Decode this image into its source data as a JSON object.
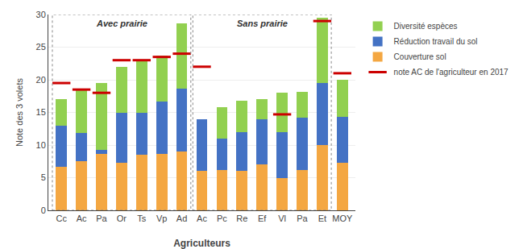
{
  "chart_data": {
    "type": "bar",
    "stacked": true,
    "categories": [
      "Cc",
      "Ac",
      "Pa",
      "Or",
      "Ts",
      "Vp",
      "Ad",
      "Ac",
      "Pc",
      "Re",
      "Ef",
      "Vl",
      "Pa",
      "Et",
      "MOY"
    ],
    "series": [
      {
        "name": "Couverture sol",
        "color": "#F4A742",
        "values": [
          6.7,
          7.5,
          8.7,
          7.3,
          8.5,
          8.7,
          9.0,
          6.0,
          6.2,
          6.0,
          7.0,
          5.0,
          6.2,
          10.0,
          7.3
        ]
      },
      {
        "name": "Réduction travail du sol",
        "color": "#4472C4",
        "values": [
          6.3,
          4.3,
          0.5,
          7.7,
          6.5,
          8.0,
          9.7,
          8.0,
          4.8,
          6.0,
          7.0,
          7.0,
          8.0,
          9.5,
          7.0
        ]
      },
      {
        "name": "Diversité espèces",
        "color": "#92D050",
        "values": [
          4.0,
          6.7,
          10.3,
          7.0,
          8.0,
          7.0,
          10.0,
          0.0,
          4.8,
          4.8,
          3.0,
          6.0,
          4.0,
          10.0,
          5.7
        ]
      },
      {
        "name": "note AC de l'agriculteur en 2017",
        "type": "scatter",
        "marker": "dash",
        "color": "#CC0000",
        "values": [
          19.5,
          18.5,
          18.0,
          23.0,
          23.0,
          23.5,
          24.0,
          22.0,
          null,
          null,
          null,
          14.7,
          null,
          29.0,
          21.0
        ]
      }
    ],
    "xlabel": "Agriculteurs",
    "ylabel": "Note des 3 volets",
    "ylim": [
      0,
      30
    ],
    "yticks": [
      0,
      5,
      10,
      15,
      20,
      25,
      30
    ],
    "grid": true,
    "legend": "right",
    "annotations": [
      {
        "text": "Avec prairie",
        "first": 0,
        "last": 6
      },
      {
        "text": "Sans prairie",
        "first": 7,
        "last": 13
      }
    ]
  }
}
